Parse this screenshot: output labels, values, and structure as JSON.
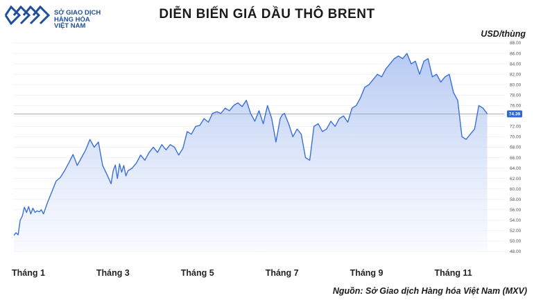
{
  "header": {
    "logo_lines": [
      "SỞ GIAO DỊCH",
      "HÀNG HÓA",
      "VIỆT NAM"
    ],
    "title": "DIỄN BIẾN GIÁ DẦU THÔ BRENT",
    "unit": "USD/thùng",
    "source": "Nguồn: Sở Giao dịch Hàng hóa Việt Nam (MXV)"
  },
  "colors": {
    "line": "#3a6fd8",
    "fill_top": "#aec4f2",
    "fill_bottom": "#f4f7fd",
    "badge": "#2f66d8",
    "logo": "#1f4e9c"
  },
  "chart_data": {
    "type": "area",
    "title": "DIỄN BIẾN GIÁ DẦU THÔ BRENT",
    "ylabel": "USD/thùng",
    "xlabel": "",
    "ylim": [
      48,
      88
    ],
    "yticks": [
      "48.00",
      "50.00",
      "52.00",
      "54.00",
      "56.00",
      "58.00",
      "60.00",
      "62.00",
      "64.00",
      "66.00",
      "68.00",
      "70.00",
      "72.00",
      "74.00",
      "76.00",
      "78.00",
      "80.00",
      "82.00",
      "84.00",
      "86.00",
      "88.00"
    ],
    "x_domain": [
      1,
      12.6
    ],
    "x_ticks": [
      {
        "x": 1,
        "label": "Tháng 1"
      },
      {
        "x": 3,
        "label": "Tháng 3"
      },
      {
        "x": 5,
        "label": "Tháng 5"
      },
      {
        "x": 7,
        "label": "Tháng 7"
      },
      {
        "x": 9,
        "label": "Tháng 9"
      },
      {
        "x": 11,
        "label": "Tháng 11"
      }
    ],
    "last_value": "74.39",
    "reference_line": 74.39,
    "grid": "horizontal",
    "series": [
      {
        "name": "",
        "x": [
          1.0,
          1.05,
          1.1,
          1.15,
          1.2,
          1.25,
          1.3,
          1.35,
          1.4,
          1.45,
          1.5,
          1.55,
          1.6,
          1.65,
          1.7,
          1.8,
          1.9,
          2.0,
          2.1,
          2.2,
          2.3,
          2.4,
          2.5,
          2.6,
          2.7,
          2.8,
          2.9,
          3.0,
          3.1,
          3.2,
          3.3,
          3.35,
          3.4,
          3.45,
          3.5,
          3.55,
          3.6,
          3.65,
          3.7,
          3.8,
          3.9,
          4.0,
          4.1,
          4.2,
          4.3,
          4.4,
          4.5,
          4.6,
          4.7,
          4.8,
          4.9,
          5.0,
          5.1,
          5.2,
          5.3,
          5.4,
          5.5,
          5.6,
          5.7,
          5.8,
          5.9,
          6.0,
          6.1,
          6.2,
          6.3,
          6.4,
          6.5,
          6.6,
          6.7,
          6.8,
          6.9,
          7.0,
          7.1,
          7.2,
          7.3,
          7.35,
          7.4,
          7.5,
          7.6,
          7.7,
          7.8,
          7.9,
          8.0,
          8.1,
          8.2,
          8.3,
          8.4,
          8.5,
          8.6,
          8.7,
          8.8,
          8.9,
          9.0,
          9.1,
          9.2,
          9.3,
          9.4,
          9.5,
          9.6,
          9.7,
          9.8,
          9.9,
          10.0,
          10.1,
          10.2,
          10.3,
          10.4,
          10.5,
          10.6,
          10.7,
          10.8,
          10.9,
          11.0,
          11.1,
          11.2,
          11.3,
          11.4,
          11.5,
          11.6,
          11.7,
          11.8,
          11.9,
          12.0,
          12.1,
          12.2
        ],
        "y": [
          51.1,
          51.6,
          51.2,
          54.0,
          54.8,
          56.5,
          55.5,
          56.6,
          55.2,
          56.3,
          55.5,
          55.8,
          55.6,
          56.0,
          55.2,
          57.5,
          59.5,
          61.5,
          62.2,
          63.5,
          65.0,
          66.6,
          64.5,
          66.0,
          67.5,
          69.5,
          68.0,
          69.0,
          64.5,
          62.8,
          61.0,
          63.5,
          64.6,
          62.0,
          64.8,
          63.2,
          64.5,
          62.5,
          63.5,
          64.0,
          65.0,
          66.5,
          65.5,
          67.0,
          68.0,
          67.0,
          68.5,
          67.5,
          68.5,
          68.0,
          66.5,
          67.8,
          71.0,
          70.5,
          72.0,
          72.2,
          73.5,
          72.8,
          74.5,
          74.8,
          74.5,
          75.5,
          75.0,
          76.0,
          76.5,
          75.8,
          77.0,
          74.5,
          73.0,
          75.0,
          72.5,
          76.0,
          73.5,
          69.0,
          73.5,
          74.2,
          74.5,
          72.5,
          70.0,
          71.5,
          70.5,
          66.0,
          65.5,
          72.0,
          72.5,
          71.0,
          71.5,
          73.0,
          72.0,
          73.5,
          74.0,
          72.8,
          75.5,
          76.0,
          77.5,
          79.5,
          80.0,
          81.0,
          82.0,
          81.5,
          83.0,
          84.0,
          85.0,
          85.5,
          85.0,
          86.0,
          84.0,
          84.5,
          82.0,
          84.5,
          85.0,
          81.5,
          82.0,
          80.5,
          81.5,
          82.0,
          78.5,
          77.0,
          70.0,
          69.5,
          70.5,
          71.5,
          76.0,
          75.5,
          74.4
        ]
      }
    ]
  }
}
